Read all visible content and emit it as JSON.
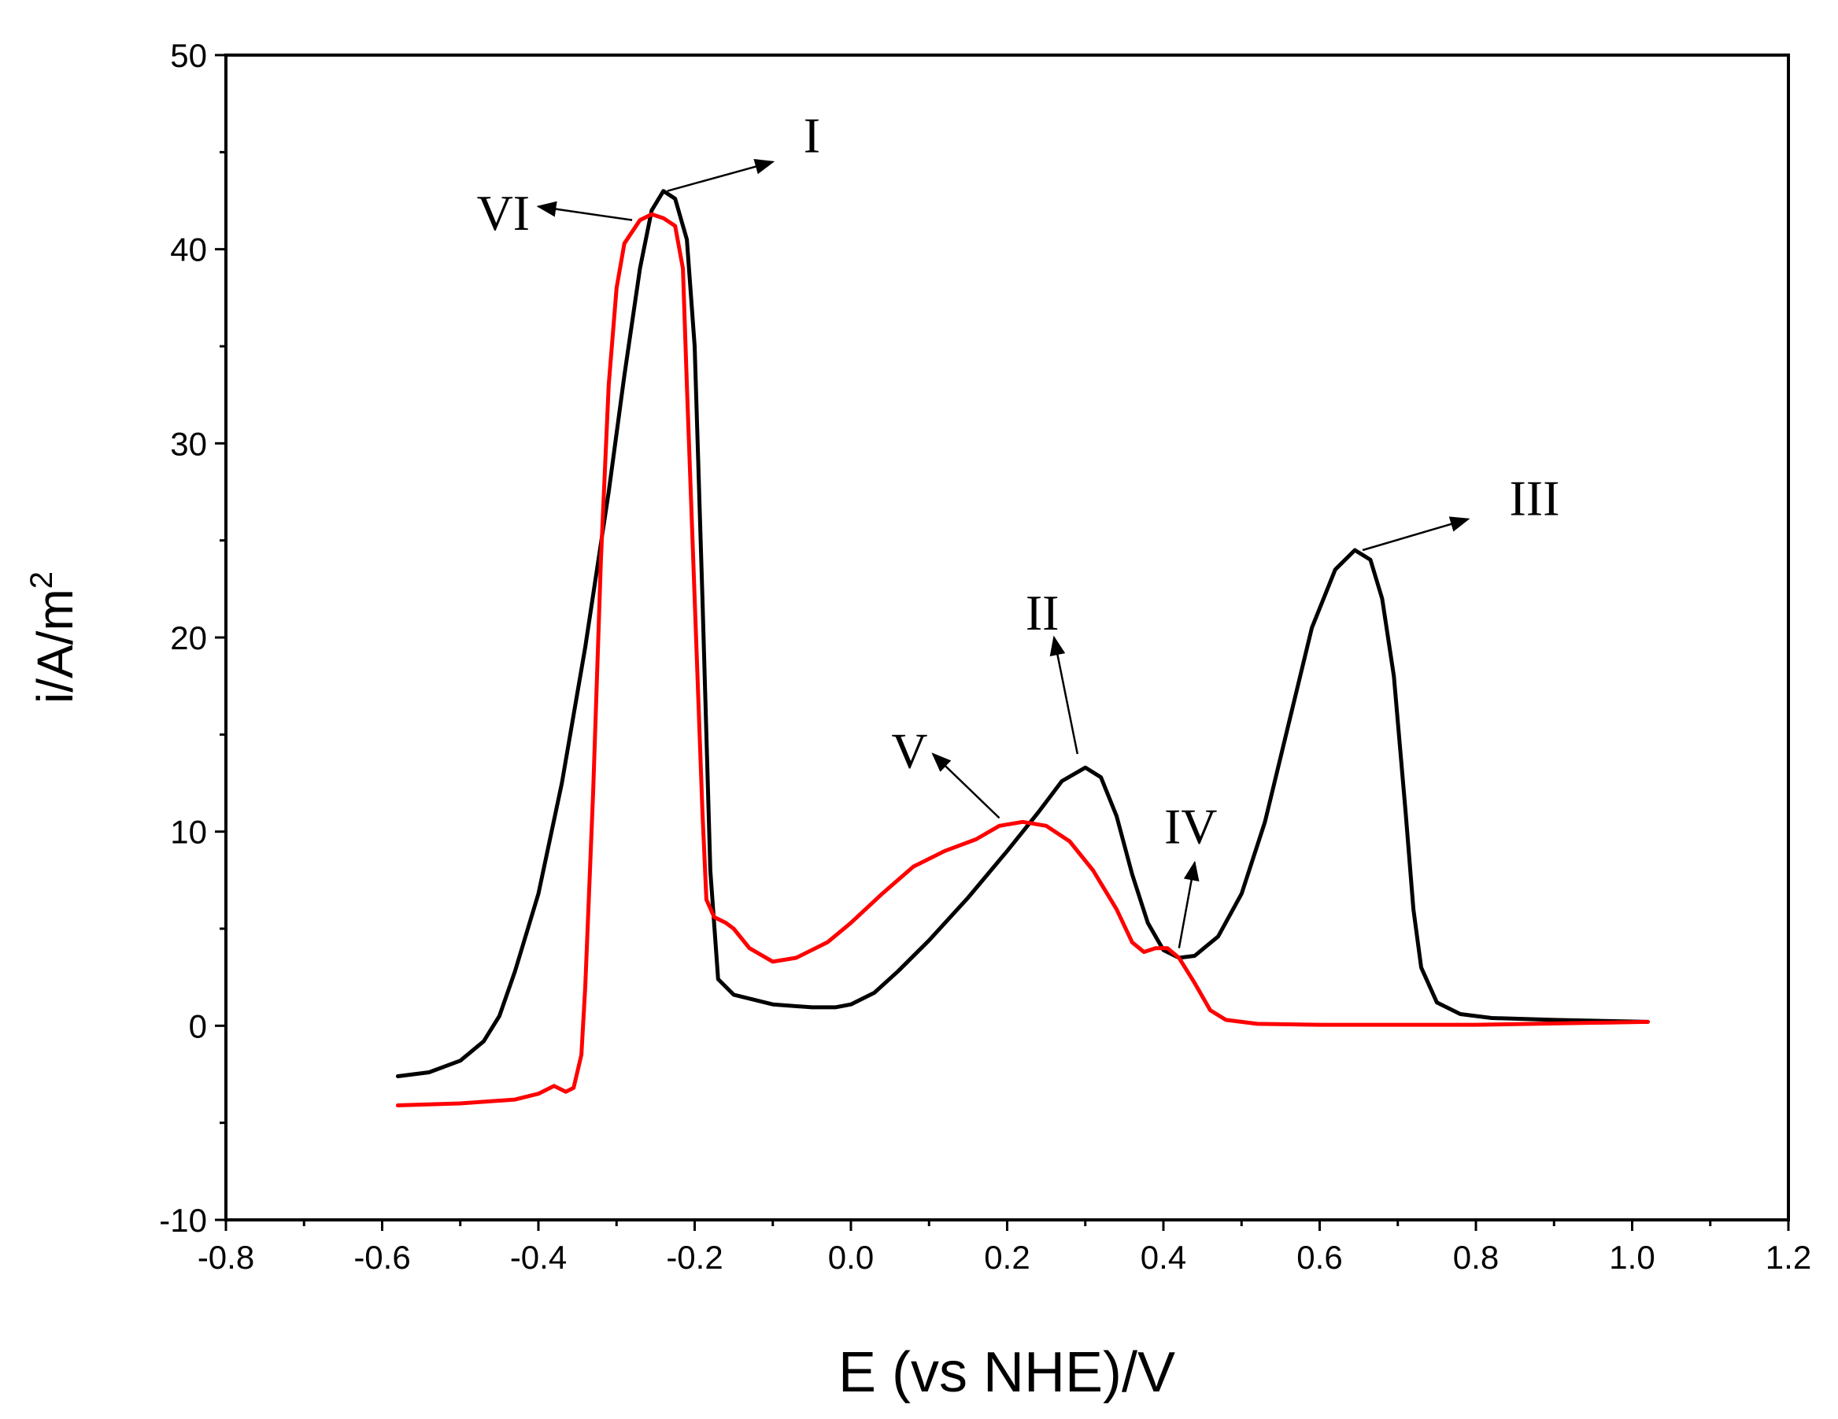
{
  "chart_data": {
    "type": "line",
    "title": "",
    "xlabel": "E (vs NHE)/V",
    "ylabel_main": "i/A/m",
    "ylabel_sup": "2",
    "xlim": [
      -0.8,
      1.2
    ],
    "ylim": [
      -10,
      50
    ],
    "x_major_ticks": [
      -0.8,
      -0.6,
      -0.4,
      -0.2,
      0.0,
      0.2,
      0.4,
      0.6,
      0.8,
      1.0,
      1.2
    ],
    "x_tick_labels": [
      "-0.8",
      "-0.6",
      "-0.4",
      "-0.2",
      "0.0",
      "0.2",
      "0.4",
      "0.6",
      "0.8",
      "1.0",
      "1.2"
    ],
    "y_major_ticks": [
      -10,
      0,
      10,
      20,
      30,
      40,
      50
    ],
    "y_tick_labels": [
      "-10",
      "0",
      "10",
      "20",
      "30",
      "40",
      "50"
    ],
    "grid": false,
    "series": [
      {
        "name": "black",
        "color": "#000000",
        "points": [
          [
            -0.58,
            -2.6
          ],
          [
            -0.54,
            -2.4
          ],
          [
            -0.5,
            -1.8
          ],
          [
            -0.47,
            -0.8
          ],
          [
            -0.45,
            0.5
          ],
          [
            -0.43,
            2.8
          ],
          [
            -0.4,
            6.8
          ],
          [
            -0.37,
            12.5
          ],
          [
            -0.34,
            19.5
          ],
          [
            -0.31,
            27.5
          ],
          [
            -0.29,
            33.5
          ],
          [
            -0.27,
            39.0
          ],
          [
            -0.255,
            42.0
          ],
          [
            -0.24,
            43.0
          ],
          [
            -0.225,
            42.6
          ],
          [
            -0.21,
            40.5
          ],
          [
            -0.2,
            35.0
          ],
          [
            -0.19,
            22.0
          ],
          [
            -0.18,
            8.0
          ],
          [
            -0.17,
            2.4
          ],
          [
            -0.15,
            1.6
          ],
          [
            -0.1,
            1.1
          ],
          [
            -0.05,
            0.95
          ],
          [
            -0.02,
            0.95
          ],
          [
            0.0,
            1.1
          ],
          [
            0.03,
            1.7
          ],
          [
            0.06,
            2.8
          ],
          [
            0.1,
            4.4
          ],
          [
            0.15,
            6.6
          ],
          [
            0.2,
            9.0
          ],
          [
            0.24,
            11.0
          ],
          [
            0.27,
            12.6
          ],
          [
            0.3,
            13.3
          ],
          [
            0.32,
            12.8
          ],
          [
            0.34,
            10.8
          ],
          [
            0.36,
            7.8
          ],
          [
            0.38,
            5.3
          ],
          [
            0.4,
            3.9
          ],
          [
            0.42,
            3.5
          ],
          [
            0.44,
            3.6
          ],
          [
            0.47,
            4.6
          ],
          [
            0.5,
            6.8
          ],
          [
            0.53,
            10.5
          ],
          [
            0.56,
            15.5
          ],
          [
            0.59,
            20.5
          ],
          [
            0.62,
            23.5
          ],
          [
            0.645,
            24.5
          ],
          [
            0.665,
            24.0
          ],
          [
            0.68,
            22.0
          ],
          [
            0.695,
            18.0
          ],
          [
            0.71,
            11.0
          ],
          [
            0.72,
            6.0
          ],
          [
            0.73,
            3.0
          ],
          [
            0.75,
            1.2
          ],
          [
            0.78,
            0.6
          ],
          [
            0.82,
            0.4
          ],
          [
            0.9,
            0.3
          ],
          [
            1.02,
            0.2
          ]
        ]
      },
      {
        "name": "red",
        "color": "#ff0000",
        "points": [
          [
            -0.58,
            -4.1
          ],
          [
            -0.5,
            -4.0
          ],
          [
            -0.43,
            -3.8
          ],
          [
            -0.4,
            -3.5
          ],
          [
            -0.38,
            -3.1
          ],
          [
            -0.365,
            -3.4
          ],
          [
            -0.355,
            -3.2
          ],
          [
            -0.345,
            -1.5
          ],
          [
            -0.34,
            2.0
          ],
          [
            -0.33,
            12.0
          ],
          [
            -0.32,
            24.0
          ],
          [
            -0.31,
            33.0
          ],
          [
            -0.3,
            38.0
          ],
          [
            -0.29,
            40.3
          ],
          [
            -0.27,
            41.5
          ],
          [
            -0.255,
            41.8
          ],
          [
            -0.24,
            41.6
          ],
          [
            -0.225,
            41.2
          ],
          [
            -0.215,
            39.0
          ],
          [
            -0.21,
            33.0
          ],
          [
            -0.2,
            22.0
          ],
          [
            -0.19,
            11.0
          ],
          [
            -0.185,
            6.5
          ],
          [
            -0.175,
            5.6
          ],
          [
            -0.16,
            5.3
          ],
          [
            -0.15,
            5.0
          ],
          [
            -0.13,
            4.0
          ],
          [
            -0.1,
            3.3
          ],
          [
            -0.07,
            3.5
          ],
          [
            -0.03,
            4.3
          ],
          [
            0.0,
            5.3
          ],
          [
            0.04,
            6.8
          ],
          [
            0.08,
            8.2
          ],
          [
            0.12,
            9.0
          ],
          [
            0.16,
            9.6
          ],
          [
            0.19,
            10.3
          ],
          [
            0.22,
            10.5
          ],
          [
            0.25,
            10.3
          ],
          [
            0.28,
            9.5
          ],
          [
            0.31,
            8.0
          ],
          [
            0.34,
            6.0
          ],
          [
            0.36,
            4.3
          ],
          [
            0.375,
            3.8
          ],
          [
            0.39,
            4.0
          ],
          [
            0.405,
            4.0
          ],
          [
            0.42,
            3.5
          ],
          [
            0.44,
            2.2
          ],
          [
            0.46,
            0.8
          ],
          [
            0.48,
            0.3
          ],
          [
            0.52,
            0.1
          ],
          [
            0.6,
            0.05
          ],
          [
            0.8,
            0.05
          ],
          [
            1.02,
            0.2
          ]
        ]
      }
    ],
    "annotations": [
      {
        "label": "I",
        "tail": [
          -0.235,
          43.0
        ],
        "head": [
          -0.1,
          44.5
        ],
        "text_at": [
          -0.05,
          45.0
        ]
      },
      {
        "label": "VI",
        "tail": [
          -0.28,
          41.5
        ],
        "head": [
          -0.4,
          42.2
        ],
        "text_at": [
          -0.445,
          41.0
        ]
      },
      {
        "label": "II",
        "tail": [
          0.29,
          14.0
        ],
        "head": [
          0.26,
          20.0
        ],
        "text_at": [
          0.245,
          20.4
        ]
      },
      {
        "label": "III",
        "tail": [
          0.655,
          24.5
        ],
        "head": [
          0.79,
          26.1
        ],
        "text_at": [
          0.875,
          26.3
        ]
      },
      {
        "label": "IV",
        "tail": [
          0.42,
          4.0
        ],
        "head": [
          0.44,
          8.4
        ],
        "text_at": [
          0.435,
          9.4
        ]
      },
      {
        "label": "V",
        "tail": [
          0.19,
          10.7
        ],
        "head": [
          0.105,
          14.0
        ],
        "text_at": [
          0.075,
          13.3
        ]
      }
    ]
  }
}
